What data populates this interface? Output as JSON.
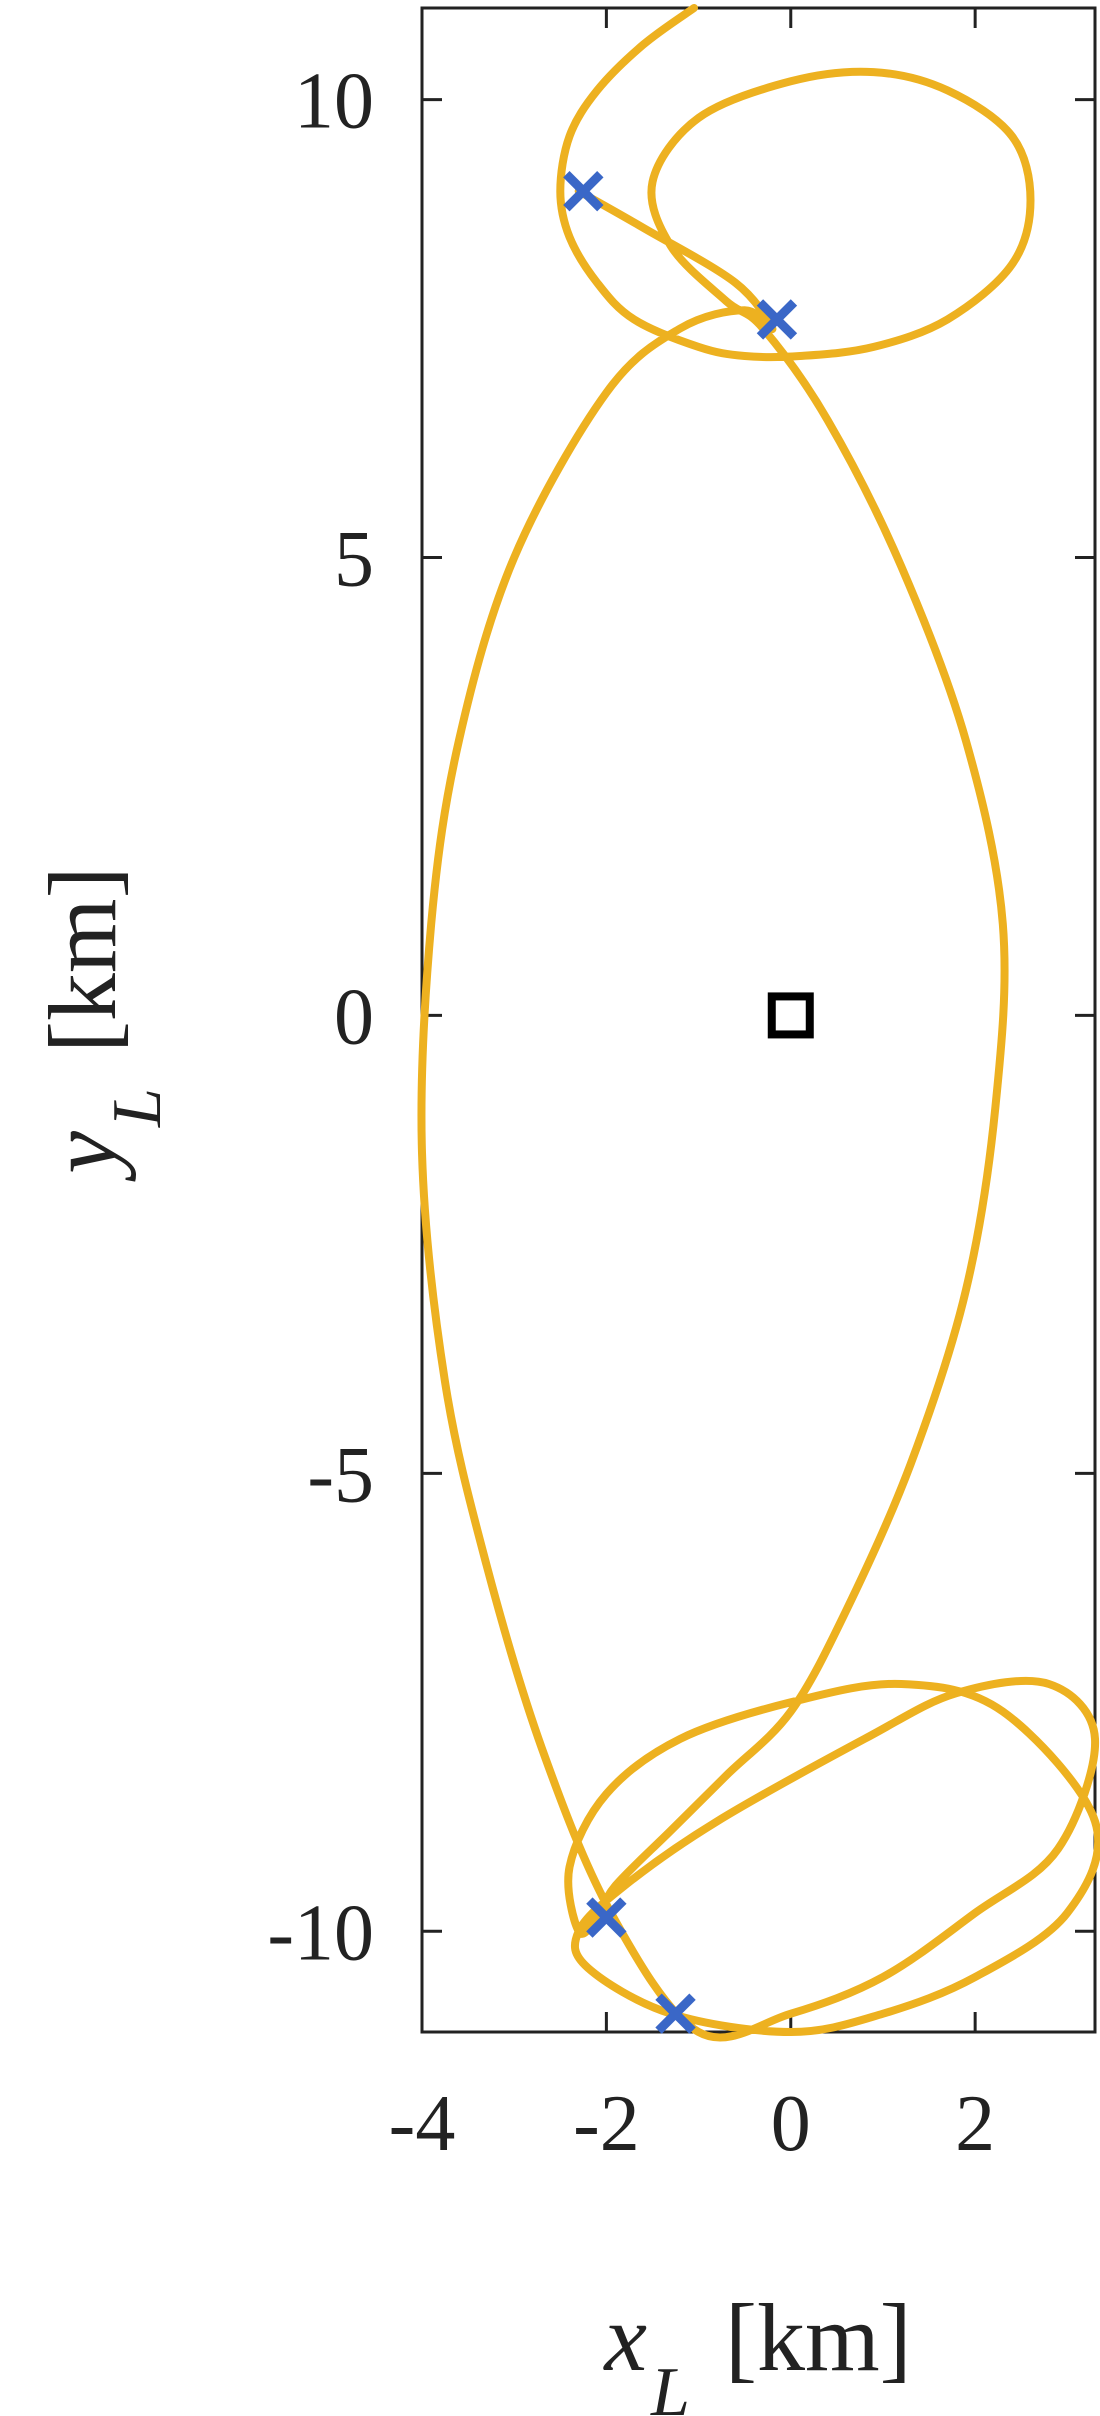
{
  "chart_data": {
    "type": "line",
    "xlabel": {
      "var": "x",
      "sub": "L",
      "unit": "[km]"
    },
    "ylabel": {
      "var": "y",
      "sub": "L",
      "unit": "[km]"
    },
    "xlim": [
      -4,
      3.3
    ],
    "ylim": [
      -11.1,
      11
    ],
    "xticks": [
      -4,
      -2,
      0,
      2
    ],
    "xtick_labels": [
      "-4",
      "-2",
      "0",
      "2"
    ],
    "yticks": [
      -10,
      -5,
      0,
      5,
      10
    ],
    "ytick_labels": [
      "-10",
      "-5",
      "0",
      "5",
      "10"
    ],
    "grid": false,
    "series": [
      {
        "color": "#EDB120",
        "x": [
          -1.05,
          -1.6,
          -2.1,
          -2.4,
          -2.5,
          -2.4,
          -2.1,
          -1.7,
          -1.0,
          -0.5,
          0.1,
          0.9,
          1.7,
          2.4,
          2.6,
          2.4,
          1.7,
          0.9,
          0.0,
          -1.0,
          -1.5,
          -1.3,
          -0.7,
          -0.3,
          0.4,
          1.2,
          1.9,
          2.3,
          2.22,
          1.9,
          1.3,
          0.6,
          0.0,
          -0.7,
          -1.3,
          -1.9,
          -2.1,
          -2.3,
          -2.4,
          -2.0,
          -1.2,
          0.0,
          1.2,
          2.3,
          3.3,
          3.0,
          2.0,
          1.0,
          0.0,
          -1.3,
          -2.2,
          -2.3,
          -1.8,
          -0.8,
          0.8,
          1.8,
          2.8,
          3.3,
          2.9,
          2.0,
          1.0,
          0.0,
          -1.0,
          -1.95,
          -2.7,
          -3.3,
          -3.75,
          -4.0,
          -3.9,
          -3.6,
          -3.0,
          -2.0,
          -1.2,
          -0.5,
          -0.2,
          -0.6,
          -1.6,
          -2.3
        ],
        "y": [
          11.0,
          10.6,
          10.1,
          9.6,
          9.0,
          8.5,
          8.0,
          7.6,
          7.3,
          7.2,
          7.2,
          7.3,
          7.6,
          8.2,
          8.9,
          9.6,
          10.1,
          10.3,
          10.2,
          9.8,
          9.1,
          8.4,
          7.8,
          7.5,
          6.5,
          4.9,
          3.0,
          1.0,
          -1.0,
          -3.0,
          -4.9,
          -6.5,
          -7.6,
          -8.3,
          -8.9,
          -9.5,
          -9.85,
          -10.0,
          -9.3,
          -8.5,
          -7.9,
          -7.5,
          -7.3,
          -7.6,
          -8.8,
          -9.8,
          -10.5,
          -10.9,
          -11.1,
          -10.9,
          -10.4,
          -10.0,
          -9.5,
          -8.8,
          -7.9,
          -7.4,
          -7.3,
          -7.9,
          -9.1,
          -9.8,
          -10.5,
          -10.9,
          -11.1,
          -9.8,
          -8.0,
          -6.0,
          -4.0,
          -1.5,
          1.0,
          3.0,
          5.0,
          6.8,
          7.5,
          7.7,
          7.5,
          8.0,
          8.6,
          9.0
        ]
      }
    ],
    "markers_x": {
      "color": "#3A67C7",
      "points": [
        [
          -2.25,
          9.0
        ],
        [
          -0.15,
          7.6
        ],
        [
          -2.0,
          -9.85
        ],
        [
          -1.25,
          -10.9
        ]
      ]
    },
    "markers_square": {
      "color": "#000000",
      "points": [
        [
          0.0,
          0.0
        ]
      ]
    }
  }
}
